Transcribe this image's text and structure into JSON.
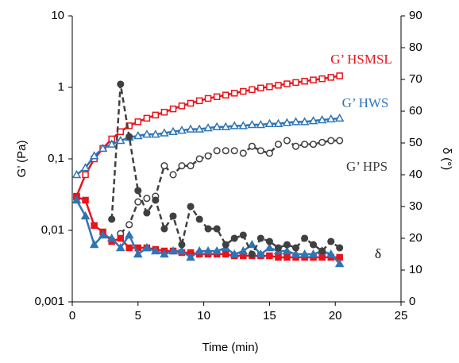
{
  "chart_data": {
    "type": "line",
    "x": [
      0.33,
      1,
      1.67,
      2.33,
      3,
      3.67,
      4.33,
      5,
      5.67,
      6.33,
      7,
      7.67,
      8.33,
      9,
      9.67,
      10.33,
      11,
      11.67,
      12.33,
      13,
      13.67,
      14.33,
      15,
      15.67,
      16.33,
      17,
      17.67,
      18.33,
      19,
      19.67,
      20.33
    ],
    "series": [
      {
        "name": "G’ HSMSL",
        "color": "#e8141b",
        "marker": "square",
        "filled": false,
        "dashed": false,
        "values": [
          0.03,
          0.06,
          0.1,
          0.14,
          0.19,
          0.24,
          0.29,
          0.33,
          0.37,
          0.41,
          0.45,
          0.5,
          0.55,
          0.6,
          0.65,
          0.7,
          0.74,
          0.78,
          0.83,
          0.88,
          0.93,
          0.98,
          1.02,
          1.07,
          1.12,
          1.17,
          1.22,
          1.27,
          1.32,
          1.38,
          1.45
        ]
      },
      {
        "name": "G’ HWS",
        "color": "#2e75b6",
        "marker": "triangle",
        "filled": false,
        "dashed": false,
        "values": [
          0.06,
          0.075,
          0.11,
          0.14,
          0.16,
          0.18,
          0.2,
          0.21,
          0.22,
          0.22,
          0.23,
          0.24,
          0.25,
          0.26,
          0.26,
          0.27,
          0.28,
          0.28,
          0.29,
          0.29,
          0.3,
          0.3,
          0.31,
          0.31,
          0.32,
          0.33,
          0.33,
          0.34,
          0.35,
          0.36,
          0.37
        ]
      },
      {
        "name": "G’ HPS",
        "color": "#404040",
        "marker": "circle",
        "filled": false,
        "dashed": true,
        "values": [
          null,
          null,
          null,
          null,
          null,
          0.009,
          0.012,
          0.025,
          0.028,
          0.03,
          0.08,
          0.06,
          0.08,
          0.08,
          0.1,
          0.11,
          0.13,
          0.13,
          0.13,
          0.12,
          0.15,
          0.13,
          0.12,
          0.16,
          0.18,
          0.15,
          0.16,
          0.16,
          0.17,
          0.18,
          0.18
        ]
      },
      {
        "axis": "y2",
        "color": "#e8141b",
        "marker": "square",
        "filled": true,
        "dashed": false,
        "values": [
          33,
          32,
          24,
          22,
          19,
          20,
          17,
          17,
          17,
          16.5,
          16,
          16,
          15.5,
          15.5,
          15,
          15,
          15,
          15,
          14.5,
          14.5,
          14.5,
          14.5,
          14.5,
          14,
          14,
          14,
          14,
          14,
          14,
          14,
          14
        ]
      },
      {
        "axis": "y2",
        "color": "#2e75b6",
        "marker": "triangle",
        "filled": true,
        "dashed": false,
        "values": [
          32,
          27,
          18,
          21,
          20,
          17,
          21,
          15,
          17,
          16,
          15,
          16,
          16,
          14,
          16,
          16,
          16,
          17,
          15,
          16,
          18,
          15,
          17,
          16,
          16,
          15,
          15,
          15,
          16,
          15,
          12
        ]
      },
      {
        "axis": "y2",
        "color": "#404040",
        "marker": "circle",
        "filled": true,
        "dashed": true,
        "values": [
          null,
          null,
          null,
          null,
          26,
          68.5,
          52,
          35,
          28,
          32,
          23,
          27,
          18,
          30,
          26,
          23,
          23,
          18,
          20,
          21,
          15,
          20,
          19,
          17,
          18,
          17,
          20,
          18,
          16,
          19,
          17
        ]
      }
    ],
    "annotations": [
      {
        "text": "G’ HSMSL",
        "color": "#e8141b"
      },
      {
        "text": "G’ HWS",
        "color": "#2e75b6"
      },
      {
        "text": "G’ HPS",
        "color": "#404040"
      },
      {
        "text": "δ",
        "color": "#000000"
      }
    ],
    "x_label": "Time (min)",
    "y_label": "G’ (Pa)",
    "y2_label": "δ (°)",
    "xlim": [
      0,
      25
    ],
    "xticks": [
      0,
      5,
      10,
      15,
      20,
      25
    ],
    "ylim": [
      0.001,
      10
    ],
    "ylog": true,
    "yticks": [
      {
        "value": 0.001,
        "label": "0,001"
      },
      {
        "value": 0.01,
        "label": "0,01"
      },
      {
        "value": 0.1,
        "label": "0,1"
      },
      1,
      10
    ],
    "y2lim": [
      0,
      90
    ],
    "y2ticks": [
      0,
      10,
      20,
      30,
      40,
      50,
      60,
      70,
      80,
      90
    ],
    "grid": false
  }
}
